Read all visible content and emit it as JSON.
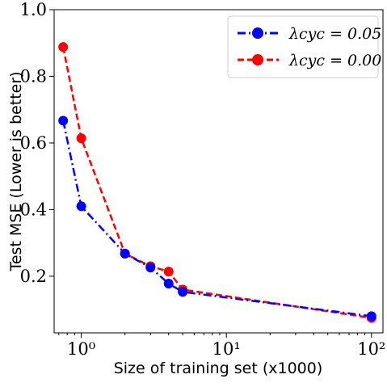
{
  "chart_data": {
    "type": "line",
    "xscale": "log",
    "xlabel": "Size of training set (x1000)",
    "ylabel": "Test MSE (Lower is better)",
    "xlim": [
      0.65,
      120
    ],
    "ylim": [
      0.03,
      1.0
    ],
    "yticks": [
      0.2,
      0.4,
      0.6,
      0.8,
      1.0
    ],
    "ytick_labels": [
      "0.2",
      "0.4",
      "0.6",
      "0.8",
      "1.0"
    ],
    "xticks": [
      1,
      10,
      100
    ],
    "xtick_labels": [
      "10⁰",
      "10¹",
      "10²"
    ],
    "grid": false,
    "legend_position": "top-right",
    "series": [
      {
        "name": "λcyc = 0.05",
        "color": "#0000ff",
        "linestyle": "dashdot",
        "marker": "circle",
        "x": [
          0.75,
          1,
          2,
          3,
          4,
          5,
          100
        ],
        "y": [
          0.667,
          0.41,
          0.268,
          0.226,
          0.178,
          0.153,
          0.08
        ]
      },
      {
        "name": "λcyc = 0.00",
        "color": "#ff0000",
        "linestyle": "dashed",
        "marker": "circle",
        "x": [
          0.75,
          1,
          2,
          3,
          4,
          5,
          100
        ],
        "y": [
          0.888,
          0.614,
          0.268,
          0.23,
          0.214,
          0.16,
          0.075
        ]
      }
    ]
  }
}
